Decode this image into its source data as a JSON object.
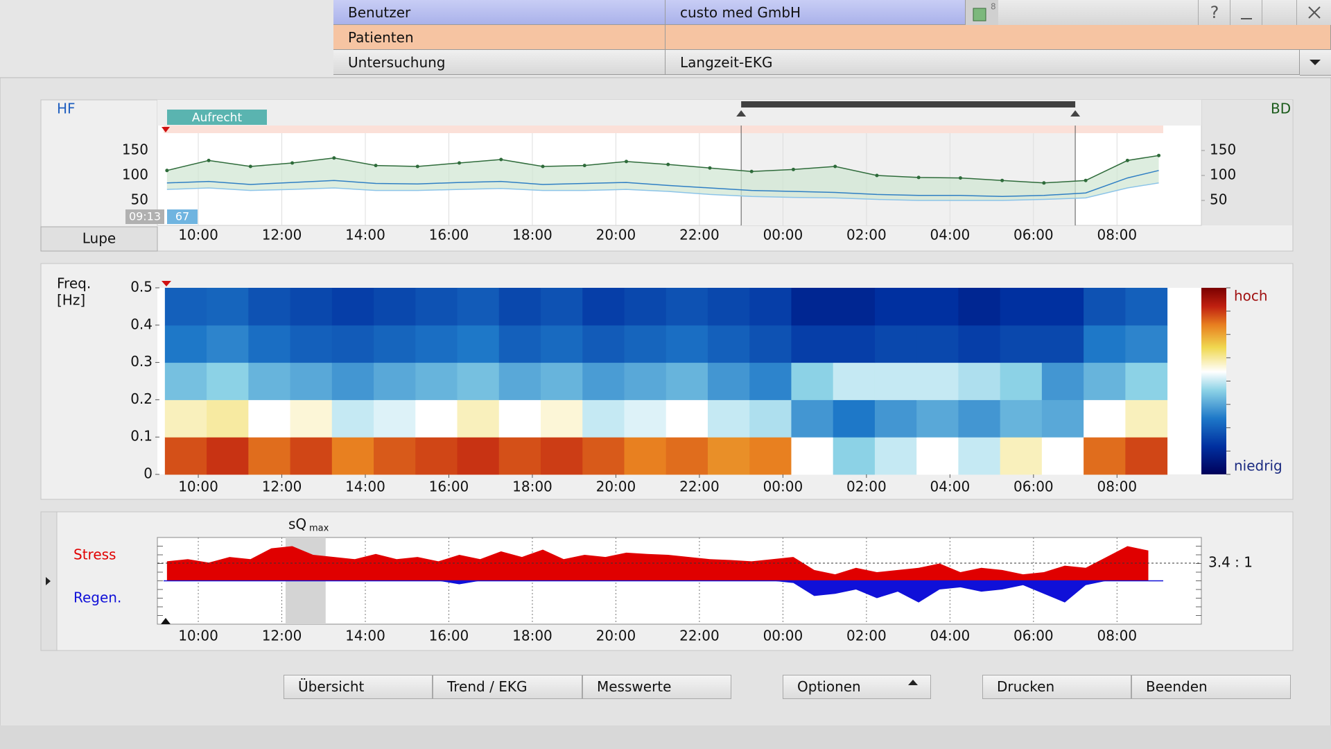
{
  "header": {
    "user_label": "Benutzer",
    "user": "custo med GmbH",
    "badge": "8",
    "help": "?",
    "patient_label": "Patienten",
    "exam_label": "Untersuchung",
    "exam": "Langzeit-EKG"
  },
  "chart_data": [
    {
      "type": "line",
      "label_left": "HF",
      "label_right": "BD",
      "annotation": "Aufrecht",
      "start_time": "09:13",
      "start_value": "67",
      "zoom_button": "Lupe",
      "x": [
        9.25,
        10.25,
        11.25,
        12.25,
        13.25,
        14.25,
        15.25,
        16.25,
        17.25,
        18.25,
        19.25,
        20.25,
        21.25,
        22.25,
        23.25,
        24.25,
        25.25,
        26.25,
        27.25,
        28.25,
        29.25,
        30.25,
        31.25,
        32.25,
        33.0
      ],
      "xlim": [
        9.02,
        34.02
      ],
      "xticks": [
        {
          "value": 10,
          "label": "10:00"
        },
        {
          "value": 12,
          "label": "12:00"
        },
        {
          "value": 14,
          "label": "14:00"
        },
        {
          "value": 16,
          "label": "16:00"
        },
        {
          "value": 18,
          "label": "18:00"
        },
        {
          "value": 20,
          "label": "20:00"
        },
        {
          "value": 22,
          "label": "22:00"
        },
        {
          "value": 24,
          "label": "00:00"
        },
        {
          "value": 26,
          "label": "02:00"
        },
        {
          "value": 28,
          "label": "04:00"
        },
        {
          "value": 30,
          "label": "06:00"
        },
        {
          "value": 32,
          "label": "08:00"
        }
      ],
      "ylim": [
        0,
        200
      ],
      "yticks": [
        50,
        100,
        150
      ],
      "selection": [
        23.0,
        31.0
      ],
      "series": [
        {
          "color": "#2e6b3a",
          "values": [
            110,
            130,
            118,
            125,
            135,
            120,
            118,
            125,
            132,
            118,
            120,
            128,
            122,
            115,
            108,
            112,
            118,
            100,
            96,
            95,
            90,
            85,
            90,
            130,
            140
          ]
        },
        {
          "color": "#2f7fc4",
          "values": [
            85,
            88,
            82,
            86,
            90,
            84,
            83,
            86,
            88,
            82,
            84,
            86,
            80,
            75,
            70,
            68,
            66,
            62,
            60,
            60,
            58,
            60,
            65,
            95,
            110
          ]
        },
        {
          "color": "#8cc4e8",
          "values": [
            72,
            75,
            70,
            72,
            75,
            70,
            70,
            72,
            74,
            70,
            70,
            72,
            68,
            62,
            58,
            56,
            55,
            52,
            50,
            50,
            50,
            52,
            55,
            75,
            85
          ]
        }
      ]
    },
    {
      "type": "heatmap",
      "ylabel": "Freq.",
      "yunit": "[Hz]",
      "high_label": "hoch",
      "low_label": "niedrig",
      "xbins": [
        9.2,
        10.2,
        11.2,
        12.2,
        13.2,
        14.2,
        15.2,
        16.2,
        17.2,
        18.2,
        19.2,
        20.2,
        21.2,
        22.2,
        23.2,
        24.2,
        25.2,
        26.2,
        27.2,
        28.2,
        29.2,
        30.2,
        31.2,
        32.2,
        33.2
      ],
      "ybins": [
        0,
        0.1,
        0.2,
        0.3,
        0.4,
        0.5
      ],
      "xlim": [
        9.02,
        34.02
      ],
      "xticks": [
        {
          "value": 10,
          "label": "10:00"
        },
        {
          "value": 12,
          "label": "12:00"
        },
        {
          "value": 14,
          "label": "14:00"
        },
        {
          "value": 16,
          "label": "16:00"
        },
        {
          "value": 18,
          "label": "18:00"
        },
        {
          "value": 20,
          "label": "20:00"
        },
        {
          "value": 22,
          "label": "22:00"
        },
        {
          "value": 24,
          "label": "00:00"
        },
        {
          "value": 26,
          "label": "02:00"
        },
        {
          "value": 28,
          "label": "04:00"
        },
        {
          "value": 30,
          "label": "06:00"
        },
        {
          "value": 32,
          "label": "08:00"
        }
      ],
      "ylim": [
        0,
        0.5
      ],
      "yticks": [
        0,
        0.1,
        0.2,
        0.3,
        0.4,
        0.5
      ],
      "zlim": [
        0,
        1
      ],
      "z": [
        [
          0.85,
          0.88,
          0.82,
          0.86,
          0.8,
          0.84,
          0.86,
          0.88,
          0.85,
          0.87,
          0.84,
          0.8,
          0.82,
          0.78,
          0.8,
          0.55,
          0.45,
          0.5,
          0.55,
          0.5,
          0.6,
          0.55,
          0.82,
          0.86
        ],
        [
          0.6,
          0.62,
          0.55,
          0.58,
          0.5,
          0.52,
          0.55,
          0.6,
          0.55,
          0.58,
          0.5,
          0.52,
          0.55,
          0.5,
          0.48,
          0.35,
          0.3,
          0.35,
          0.38,
          0.35,
          0.4,
          0.38,
          0.55,
          0.6
        ],
        [
          0.42,
          0.45,
          0.4,
          0.38,
          0.35,
          0.38,
          0.4,
          0.42,
          0.38,
          0.4,
          0.36,
          0.38,
          0.4,
          0.35,
          0.32,
          0.45,
          0.5,
          0.5,
          0.5,
          0.48,
          0.45,
          0.35,
          0.4,
          0.45
        ],
        [
          0.3,
          0.32,
          0.28,
          0.25,
          0.24,
          0.26,
          0.28,
          0.3,
          0.25,
          0.27,
          0.24,
          0.26,
          0.28,
          0.25,
          0.22,
          0.18,
          0.18,
          0.2,
          0.2,
          0.18,
          0.2,
          0.2,
          0.3,
          0.32
        ],
        [
          0.25,
          0.26,
          0.22,
          0.2,
          0.18,
          0.2,
          0.22,
          0.24,
          0.2,
          0.22,
          0.18,
          0.2,
          0.22,
          0.2,
          0.18,
          0.12,
          0.12,
          0.15,
          0.15,
          0.12,
          0.15,
          0.15,
          0.22,
          0.25
        ]
      ]
    },
    {
      "type": "area",
      "ratio": "3.4 : 1",
      "marker": "sQ",
      "marker_sub": "max",
      "marker_range": [
        12.09,
        13.05
      ],
      "x": [
        9.25,
        9.75,
        10.25,
        10.75,
        11.25,
        11.75,
        12.25,
        12.75,
        13.25,
        13.75,
        14.25,
        14.75,
        15.25,
        15.75,
        16.25,
        16.75,
        17.25,
        17.75,
        18.25,
        18.75,
        19.25,
        19.75,
        20.25,
        20.75,
        21.25,
        21.75,
        22.25,
        22.75,
        23.25,
        23.75,
        24.25,
        24.75,
        25.25,
        25.75,
        26.25,
        26.75,
        27.25,
        27.75,
        28.25,
        28.75,
        29.25,
        29.75,
        30.25,
        30.75,
        31.25,
        31.75,
        32.25,
        32.75
      ],
      "xlim": [
        9.02,
        34.02
      ],
      "xticks": [
        {
          "value": 10,
          "label": "10:00"
        },
        {
          "value": 12,
          "label": "12:00"
        },
        {
          "value": 14,
          "label": "14:00"
        },
        {
          "value": 16,
          "label": "16:00"
        },
        {
          "value": 18,
          "label": "18:00"
        },
        {
          "value": 20,
          "label": "20:00"
        },
        {
          "value": 22,
          "label": "22:00"
        },
        {
          "value": 24,
          "label": "00:00"
        },
        {
          "value": 26,
          "label": "02:00"
        },
        {
          "value": 28,
          "label": "04:00"
        },
        {
          "value": 30,
          "label": "06:00"
        },
        {
          "value": 32,
          "label": "08:00"
        }
      ],
      "ylim": [
        -1,
        1
      ],
      "series": [
        {
          "name": "Stress",
          "color": "#e00000",
          "values": [
            0.45,
            0.5,
            0.42,
            0.55,
            0.5,
            0.75,
            0.8,
            0.6,
            0.55,
            0.5,
            0.62,
            0.5,
            0.55,
            0.45,
            0.6,
            0.5,
            0.68,
            0.55,
            0.72,
            0.5,
            0.6,
            0.55,
            0.65,
            0.62,
            0.6,
            0.55,
            0.5,
            0.48,
            0.45,
            0.5,
            0.55,
            0.25,
            0.15,
            0.3,
            0.2,
            0.25,
            0.3,
            0.4,
            0.2,
            0.3,
            0.25,
            0.15,
            0.2,
            0.35,
            0.3,
            0.55,
            0.8,
            0.7
          ]
        },
        {
          "name": "Regen.",
          "color": "#1010d8",
          "values": [
            0,
            0,
            0,
            0,
            0,
            0,
            0,
            0,
            0,
            0,
            0,
            0,
            0,
            0,
            -0.08,
            0,
            0,
            0,
            0,
            0,
            0,
            0,
            0,
            0,
            0,
            0,
            0,
            0,
            0,
            0,
            -0.05,
            -0.35,
            -0.3,
            -0.2,
            -0.4,
            -0.25,
            -0.5,
            -0.2,
            -0.15,
            -0.25,
            -0.2,
            -0.1,
            -0.3,
            -0.5,
            -0.1,
            0,
            0,
            0
          ]
        }
      ]
    }
  ],
  "buttons": [
    "Übersicht",
    "Trend / EKG",
    "Messwerte",
    "Optionen",
    "Drucken",
    "Beenden"
  ]
}
